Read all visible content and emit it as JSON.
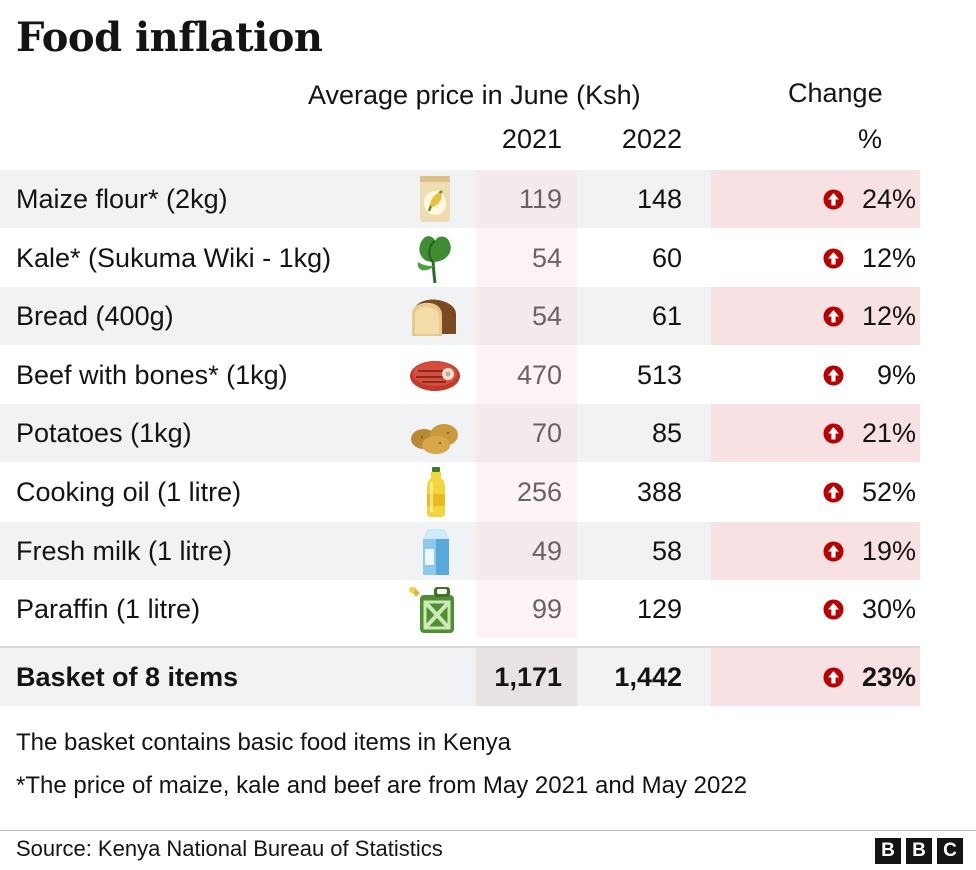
{
  "chart_data": {
    "type": "table",
    "title": "Food inflation",
    "column_group_label": "Average price in June (Ksh)",
    "change_label": "Change",
    "change_unit": "%",
    "years": [
      "2021",
      "2022"
    ],
    "rows": [
      {
        "label": "Maize flour* (2kg)",
        "icon": "maize-flour-icon",
        "v2021": "119",
        "v2022": "148",
        "change": "24%"
      },
      {
        "label": "Kale* (Sukuma Wiki - 1kg)",
        "icon": "kale-icon",
        "v2021": "54",
        "v2022": "60",
        "change": "12%"
      },
      {
        "label": "Bread (400g)",
        "icon": "bread-icon",
        "v2021": "54",
        "v2022": "61",
        "change": "12%"
      },
      {
        "label": "Beef with bones* (1kg)",
        "icon": "beef-icon",
        "v2021": "470",
        "v2022": "513",
        "change": "9%"
      },
      {
        "label": "Potatoes (1kg)",
        "icon": "potatoes-icon",
        "v2021": "70",
        "v2022": "85",
        "change": "21%"
      },
      {
        "label": "Cooking oil (1 litre)",
        "icon": "cooking-oil-icon",
        "v2021": "256",
        "v2022": "388",
        "change": "52%"
      },
      {
        "label": "Fresh milk (1 litre)",
        "icon": "milk-carton-icon",
        "v2021": "49",
        "v2022": "58",
        "change": "19%"
      },
      {
        "label": "Paraffin (1 litre)",
        "icon": "jerrycan-icon",
        "v2021": "99",
        "v2022": "129",
        "change": "30%"
      }
    ],
    "total": {
      "label": "Basket of 8 items",
      "v2021": "1,171",
      "v2022": "1,442",
      "change": "23%"
    },
    "notes": [
      "The basket contains basic food items in Kenya",
      "*The price of maize, kale and beef are from May 2021 and May 2022"
    ],
    "source": "Source: Kenya National Bureau of Statistics"
  },
  "branding": {
    "letters": [
      "B",
      "B",
      "C"
    ]
  },
  "colors": {
    "arrow_up": "#b80000",
    "row_shade": "#f1f2f3",
    "change_shade": "#f8e1e3"
  }
}
